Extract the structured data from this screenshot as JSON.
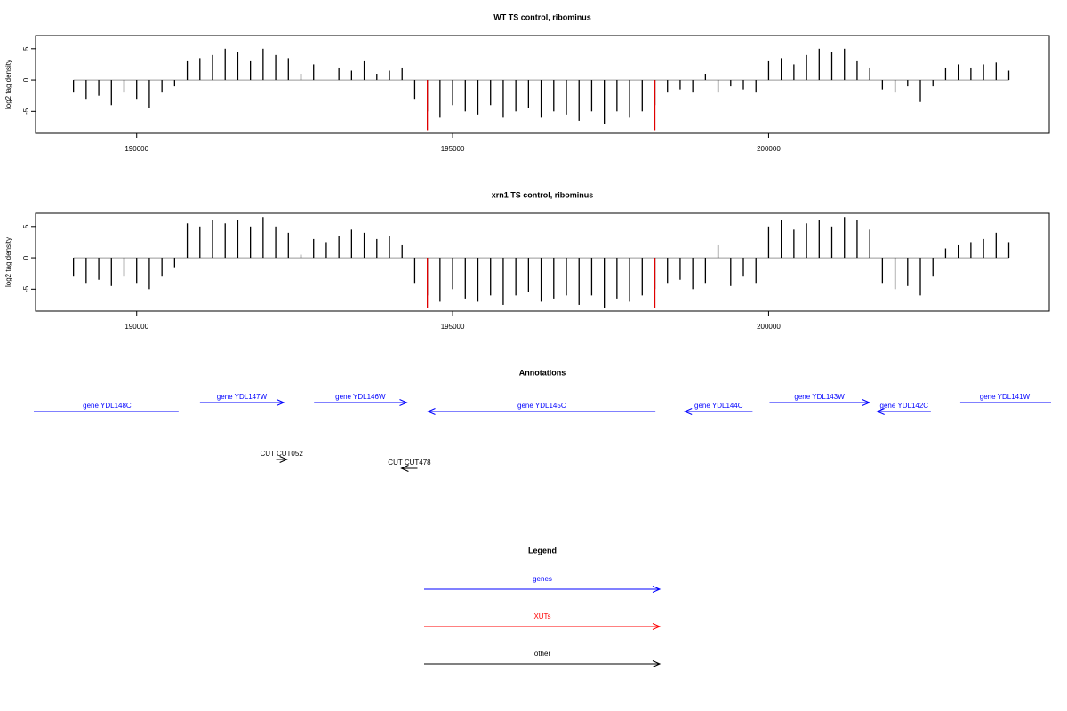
{
  "chart_data": [
    {
      "type": "bar",
      "title": "WT TS control, ribominus",
      "ylabel": "log2 tag density",
      "color": "#000000",
      "x": [
        189000,
        189200,
        189400,
        189600,
        189800,
        190000,
        190200,
        190400,
        190600,
        190800,
        191000,
        191200,
        191400,
        191600,
        191800,
        192000,
        192200,
        192400,
        192600,
        192800,
        193000,
        193200,
        193400,
        193600,
        193800,
        194000,
        194200,
        194400,
        194600,
        194800,
        195000,
        195200,
        195400,
        195600,
        195800,
        196000,
        196200,
        196400,
        196600,
        196800,
        197000,
        197200,
        197400,
        197600,
        197800,
        198000,
        198200,
        198400,
        198600,
        198800,
        199000,
        199200,
        199400,
        199600,
        199800,
        200000,
        200200,
        200400,
        200600,
        200800,
        201000,
        201200,
        201400,
        201600,
        201800,
        202000,
        202200,
        202400,
        202600,
        202800,
        203000,
        203200,
        203400,
        203600,
        203800
      ],
      "values": [
        -2,
        -3,
        -2.5,
        -4,
        -2,
        -3,
        -4.5,
        -2,
        -1,
        3,
        3.5,
        4,
        5,
        4.5,
        3,
        5,
        4,
        3.5,
        1,
        2.5,
        0,
        2,
        1.5,
        3,
        1,
        1.5,
        2,
        -3,
        -5,
        -6,
        -4,
        -5,
        -5.5,
        -4,
        -6,
        -5,
        -4.5,
        -6,
        -5,
        -5.5,
        -6.5,
        -5,
        -7,
        -5,
        -6,
        -5,
        -4,
        -2,
        -1.5,
        -2,
        1,
        -2,
        -1,
        -1.5,
        -2,
        3,
        3.5,
        2.5,
        4,
        5,
        4.5,
        5,
        3,
        2,
        -1.5,
        -2,
        -1,
        -3.5,
        -1,
        2,
        2.5,
        2,
        2.5,
        2.8,
        1.5
      ],
      "highlight": {
        "color": "#e00000",
        "x": [
          194600,
          198200
        ],
        "values": [
          -8,
          -8
        ]
      },
      "xlim": [
        188400,
        204440
      ],
      "ylim": [
        -8.5,
        7.1
      ],
      "xticks": [
        190000,
        195000,
        200000
      ],
      "yticks": [
        -5,
        0,
        5
      ]
    },
    {
      "type": "bar",
      "title": "xrn1 TS control, ribominus",
      "ylabel": "log2 tag density",
      "color": "#000000",
      "x": [
        189000,
        189200,
        189400,
        189600,
        189800,
        190000,
        190200,
        190400,
        190600,
        190800,
        191000,
        191200,
        191400,
        191600,
        191800,
        192000,
        192200,
        192400,
        192600,
        192800,
        193000,
        193200,
        193400,
        193600,
        193800,
        194000,
        194200,
        194400,
        194600,
        194800,
        195000,
        195200,
        195400,
        195600,
        195800,
        196000,
        196200,
        196400,
        196600,
        196800,
        197000,
        197200,
        197400,
        197600,
        197800,
        198000,
        198200,
        198400,
        198600,
        198800,
        199000,
        199200,
        199400,
        199600,
        199800,
        200000,
        200200,
        200400,
        200600,
        200800,
        201000,
        201200,
        201400,
        201600,
        201800,
        202000,
        202200,
        202400,
        202600,
        202800,
        203000,
        203200,
        203400,
        203600,
        203800
      ],
      "values": [
        -3,
        -4,
        -3.5,
        -4.5,
        -3,
        -4,
        -5,
        -3,
        -1.5,
        5.5,
        5,
        6,
        5.5,
        6,
        5,
        6.5,
        5,
        4,
        0.5,
        3,
        2.5,
        3.5,
        4.5,
        4,
        3,
        3.5,
        2,
        -4,
        -6,
        -7,
        -5,
        -6.5,
        -7,
        -6,
        -7.5,
        -6,
        -5.5,
        -7,
        -6.5,
        -6,
        -7.5,
        -6,
        -8,
        -6.5,
        -7,
        -6,
        -5,
        -4,
        -3.5,
        -5,
        -4,
        2,
        -4.5,
        -3,
        -4,
        5,
        6,
        4.5,
        5.5,
        6,
        5,
        6.5,
        6,
        4.5,
        -4,
        -5,
        -4.5,
        -6,
        -3,
        1.5,
        2,
        2.5,
        3,
        4,
        2.5
      ],
      "highlight": {
        "color": "#e00000",
        "x": [
          194600,
          198200
        ],
        "values": [
          -8,
          -8
        ]
      },
      "xlim": [
        188400,
        204440
      ],
      "ylim": [
        -8.5,
        7.1
      ],
      "xticks": [
        190000,
        195000,
        200000
      ],
      "yticks": [
        -5,
        0,
        5
      ]
    }
  ],
  "annotations": {
    "title": "Annotations",
    "color": "#0000ff",
    "other_color": "#000000",
    "genes": [
      {
        "label": "gene YDL148C",
        "start": 188200,
        "end": 190663,
        "direction": "left"
      },
      {
        "label": "gene YDL147W",
        "start": 191001,
        "end": 192327,
        "direction": "right"
      },
      {
        "label": "gene YDL146W",
        "start": 192807,
        "end": 194274,
        "direction": "right"
      },
      {
        "label": "gene YDL145C",
        "start": 194612,
        "end": 198209,
        "direction": "left"
      },
      {
        "label": "gene YDL144C",
        "start": 198674,
        "end": 199746,
        "direction": "left"
      },
      {
        "label": "gene YDL143W",
        "start": 200014,
        "end": 201594,
        "direction": "right"
      },
      {
        "label": "gene YDL142C",
        "start": 201720,
        "end": 202567,
        "direction": "left"
      },
      {
        "label": "gene YDL141W",
        "start": 203032,
        "end": 204700,
        "direction": "right"
      }
    ],
    "other": [
      {
        "label": "CUT CUT052",
        "start": 192207,
        "end": 192377,
        "direction": "right"
      },
      {
        "label": "CUT CUT478",
        "start": 194189,
        "end": 194443,
        "direction": "left"
      }
    ]
  },
  "legend": {
    "title": "Legend",
    "items": [
      {
        "label": "genes",
        "color": "#0000ff"
      },
      {
        "label": "XUTs",
        "color": "#ff0000"
      },
      {
        "label": "other",
        "color": "#000000"
      }
    ]
  }
}
